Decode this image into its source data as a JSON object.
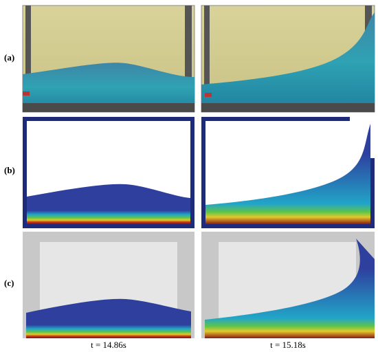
{
  "rows": [
    {
      "label": "(a)"
    },
    {
      "label": "(b)"
    },
    {
      "label": "(c)"
    }
  ],
  "captions": [
    "t = 14.86s",
    "t = 15.18s"
  ]
}
